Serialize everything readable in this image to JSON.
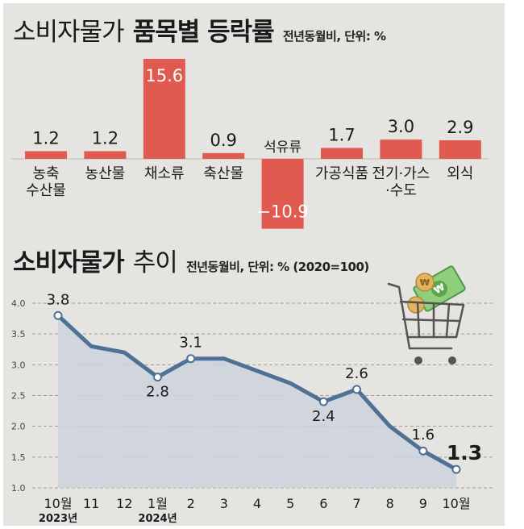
{
  "colors": {
    "background": "#e6e4e0",
    "bar": "#e05a4f",
    "line": "#4e7196",
    "area": "#cdd3dd",
    "marker_fill": "#ffffff",
    "text": "#1a1a1a",
    "grid": "#9c9c9c"
  },
  "bar_section": {
    "title_light": "소비자물가",
    "title_bold": "품목별 등락률",
    "note": "전년동월비, 단위: %"
  },
  "line_section": {
    "title_bold": "소비자물가",
    "title_light": "추이",
    "note": "전년동월비, 단위: % (2020=100)",
    "icon": "shopping-cart-with-money-icon"
  },
  "chart_data": [
    {
      "type": "bar",
      "title": "소비자물가 품목별 등락률",
      "subtitle": "전년동월비, 단위: %",
      "categories": [
        [
          "농축",
          "수산물"
        ],
        [
          "농산물"
        ],
        [
          "채소류"
        ],
        [
          "축산물"
        ],
        [
          "석유류"
        ],
        [
          "가공식품"
        ],
        [
          "전기·가스",
          "·수도"
        ],
        [
          "외식"
        ]
      ],
      "values": [
        1.2,
        1.2,
        15.6,
        0.9,
        -10.9,
        1.7,
        3.0,
        2.9
      ],
      "value_labels": [
        "1.2",
        "1.2",
        "15.6",
        "0.9",
        "−10.9",
        "1.7",
        "3.0",
        "2.9"
      ],
      "xlabel": "",
      "ylabel": "",
      "ylim": [
        -12,
        16
      ],
      "grid": false
    },
    {
      "type": "line",
      "title": "소비자물가 추이",
      "subtitle": "전년동월비, 단위: % (2020=100)",
      "x": [
        "10월",
        "11",
        "12",
        "1월",
        "2",
        "3",
        "4",
        "5",
        "6",
        "7",
        "8",
        "9",
        "10월"
      ],
      "x_sublabels": [
        "2023년",
        "",
        "",
        "2024년",
        "",
        "",
        "",
        "",
        "",
        "",
        "",
        "",
        ""
      ],
      "values": [
        3.8,
        3.3,
        3.2,
        2.8,
        3.1,
        3.1,
        2.9,
        2.7,
        2.4,
        2.6,
        2.0,
        1.6,
        1.3
      ],
      "point_labels": [
        "3.8",
        "",
        "",
        "2.8",
        "3.1",
        "",
        "",
        "",
        "2.4",
        "2.6",
        "",
        "1.6",
        "1.3"
      ],
      "markers": [
        true,
        false,
        false,
        true,
        true,
        false,
        false,
        false,
        true,
        true,
        false,
        true,
        true
      ],
      "yticks": [
        "4.0",
        "3.5",
        "3.0",
        "2.5",
        "2.0",
        "1.5",
        "1.0"
      ],
      "ylim": [
        1.0,
        4.0
      ],
      "grid": true,
      "legend": "none"
    }
  ]
}
